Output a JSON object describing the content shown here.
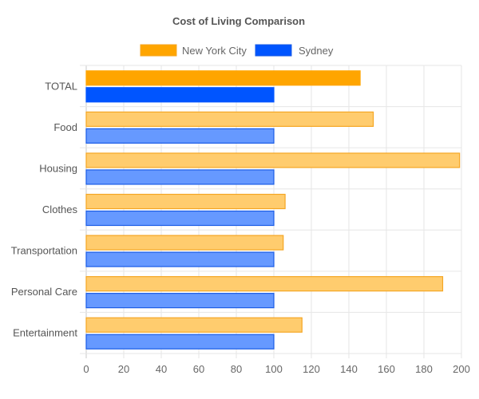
{
  "chart_data": {
    "type": "bar",
    "orientation": "horizontal",
    "title": "Cost of Living Comparison",
    "xlabel": "",
    "ylabel": "",
    "xlim": [
      0,
      200
    ],
    "x_ticks": [
      0,
      20,
      40,
      60,
      80,
      100,
      120,
      140,
      160,
      180,
      200
    ],
    "grid": true,
    "legend_position": "top-center",
    "categories": [
      "TOTAL",
      "Food",
      "Housing",
      "Clothes",
      "Transportation",
      "Personal Care",
      "Entertainment"
    ],
    "series": [
      {
        "name": "New York City",
        "color": "#FFA500",
        "faded_color": "#FFCC6E",
        "border_color": "#F5A623",
        "values": [
          146,
          153,
          199,
          106,
          105,
          190,
          115
        ]
      },
      {
        "name": "Sydney",
        "color": "#0055FF",
        "faded_color": "#6699FF",
        "border_color": "#1A5CE6",
        "values": [
          100,
          100,
          100,
          100,
          100,
          100,
          100
        ]
      }
    ],
    "highlighted_category": "TOTAL"
  }
}
